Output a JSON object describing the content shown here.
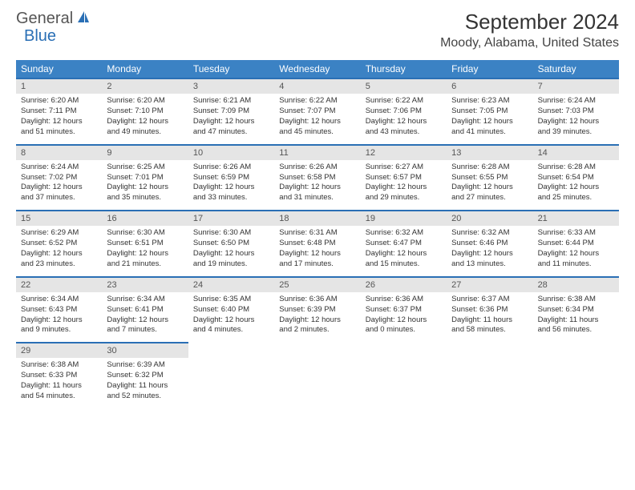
{
  "logo": {
    "text_general": "General",
    "text_blue": "Blue"
  },
  "title": "September 2024",
  "location": "Moody, Alabama, United States",
  "colors": {
    "header_bg": "#3b82c4",
    "header_text": "#ffffff",
    "day_bar_bg": "#e5e5e5",
    "day_bar_border": "#2a6fb5",
    "body_text": "#333333",
    "logo_blue": "#2a6fb5",
    "logo_gray": "#555555"
  },
  "day_names": [
    "Sunday",
    "Monday",
    "Tuesday",
    "Wednesday",
    "Thursday",
    "Friday",
    "Saturday"
  ],
  "weeks": [
    [
      {
        "num": "1",
        "sunrise": "Sunrise: 6:20 AM",
        "sunset": "Sunset: 7:11 PM",
        "daylight1": "Daylight: 12 hours",
        "daylight2": "and 51 minutes."
      },
      {
        "num": "2",
        "sunrise": "Sunrise: 6:20 AM",
        "sunset": "Sunset: 7:10 PM",
        "daylight1": "Daylight: 12 hours",
        "daylight2": "and 49 minutes."
      },
      {
        "num": "3",
        "sunrise": "Sunrise: 6:21 AM",
        "sunset": "Sunset: 7:09 PM",
        "daylight1": "Daylight: 12 hours",
        "daylight2": "and 47 minutes."
      },
      {
        "num": "4",
        "sunrise": "Sunrise: 6:22 AM",
        "sunset": "Sunset: 7:07 PM",
        "daylight1": "Daylight: 12 hours",
        "daylight2": "and 45 minutes."
      },
      {
        "num": "5",
        "sunrise": "Sunrise: 6:22 AM",
        "sunset": "Sunset: 7:06 PM",
        "daylight1": "Daylight: 12 hours",
        "daylight2": "and 43 minutes."
      },
      {
        "num": "6",
        "sunrise": "Sunrise: 6:23 AM",
        "sunset": "Sunset: 7:05 PM",
        "daylight1": "Daylight: 12 hours",
        "daylight2": "and 41 minutes."
      },
      {
        "num": "7",
        "sunrise": "Sunrise: 6:24 AM",
        "sunset": "Sunset: 7:03 PM",
        "daylight1": "Daylight: 12 hours",
        "daylight2": "and 39 minutes."
      }
    ],
    [
      {
        "num": "8",
        "sunrise": "Sunrise: 6:24 AM",
        "sunset": "Sunset: 7:02 PM",
        "daylight1": "Daylight: 12 hours",
        "daylight2": "and 37 minutes."
      },
      {
        "num": "9",
        "sunrise": "Sunrise: 6:25 AM",
        "sunset": "Sunset: 7:01 PM",
        "daylight1": "Daylight: 12 hours",
        "daylight2": "and 35 minutes."
      },
      {
        "num": "10",
        "sunrise": "Sunrise: 6:26 AM",
        "sunset": "Sunset: 6:59 PM",
        "daylight1": "Daylight: 12 hours",
        "daylight2": "and 33 minutes."
      },
      {
        "num": "11",
        "sunrise": "Sunrise: 6:26 AM",
        "sunset": "Sunset: 6:58 PM",
        "daylight1": "Daylight: 12 hours",
        "daylight2": "and 31 minutes."
      },
      {
        "num": "12",
        "sunrise": "Sunrise: 6:27 AM",
        "sunset": "Sunset: 6:57 PM",
        "daylight1": "Daylight: 12 hours",
        "daylight2": "and 29 minutes."
      },
      {
        "num": "13",
        "sunrise": "Sunrise: 6:28 AM",
        "sunset": "Sunset: 6:55 PM",
        "daylight1": "Daylight: 12 hours",
        "daylight2": "and 27 minutes."
      },
      {
        "num": "14",
        "sunrise": "Sunrise: 6:28 AM",
        "sunset": "Sunset: 6:54 PM",
        "daylight1": "Daylight: 12 hours",
        "daylight2": "and 25 minutes."
      }
    ],
    [
      {
        "num": "15",
        "sunrise": "Sunrise: 6:29 AM",
        "sunset": "Sunset: 6:52 PM",
        "daylight1": "Daylight: 12 hours",
        "daylight2": "and 23 minutes."
      },
      {
        "num": "16",
        "sunrise": "Sunrise: 6:30 AM",
        "sunset": "Sunset: 6:51 PM",
        "daylight1": "Daylight: 12 hours",
        "daylight2": "and 21 minutes."
      },
      {
        "num": "17",
        "sunrise": "Sunrise: 6:30 AM",
        "sunset": "Sunset: 6:50 PM",
        "daylight1": "Daylight: 12 hours",
        "daylight2": "and 19 minutes."
      },
      {
        "num": "18",
        "sunrise": "Sunrise: 6:31 AM",
        "sunset": "Sunset: 6:48 PM",
        "daylight1": "Daylight: 12 hours",
        "daylight2": "and 17 minutes."
      },
      {
        "num": "19",
        "sunrise": "Sunrise: 6:32 AM",
        "sunset": "Sunset: 6:47 PM",
        "daylight1": "Daylight: 12 hours",
        "daylight2": "and 15 minutes."
      },
      {
        "num": "20",
        "sunrise": "Sunrise: 6:32 AM",
        "sunset": "Sunset: 6:46 PM",
        "daylight1": "Daylight: 12 hours",
        "daylight2": "and 13 minutes."
      },
      {
        "num": "21",
        "sunrise": "Sunrise: 6:33 AM",
        "sunset": "Sunset: 6:44 PM",
        "daylight1": "Daylight: 12 hours",
        "daylight2": "and 11 minutes."
      }
    ],
    [
      {
        "num": "22",
        "sunrise": "Sunrise: 6:34 AM",
        "sunset": "Sunset: 6:43 PM",
        "daylight1": "Daylight: 12 hours",
        "daylight2": "and 9 minutes."
      },
      {
        "num": "23",
        "sunrise": "Sunrise: 6:34 AM",
        "sunset": "Sunset: 6:41 PM",
        "daylight1": "Daylight: 12 hours",
        "daylight2": "and 7 minutes."
      },
      {
        "num": "24",
        "sunrise": "Sunrise: 6:35 AM",
        "sunset": "Sunset: 6:40 PM",
        "daylight1": "Daylight: 12 hours",
        "daylight2": "and 4 minutes."
      },
      {
        "num": "25",
        "sunrise": "Sunrise: 6:36 AM",
        "sunset": "Sunset: 6:39 PM",
        "daylight1": "Daylight: 12 hours",
        "daylight2": "and 2 minutes."
      },
      {
        "num": "26",
        "sunrise": "Sunrise: 6:36 AM",
        "sunset": "Sunset: 6:37 PM",
        "daylight1": "Daylight: 12 hours",
        "daylight2": "and 0 minutes."
      },
      {
        "num": "27",
        "sunrise": "Sunrise: 6:37 AM",
        "sunset": "Sunset: 6:36 PM",
        "daylight1": "Daylight: 11 hours",
        "daylight2": "and 58 minutes."
      },
      {
        "num": "28",
        "sunrise": "Sunrise: 6:38 AM",
        "sunset": "Sunset: 6:34 PM",
        "daylight1": "Daylight: 11 hours",
        "daylight2": "and 56 minutes."
      }
    ],
    [
      {
        "num": "29",
        "sunrise": "Sunrise: 6:38 AM",
        "sunset": "Sunset: 6:33 PM",
        "daylight1": "Daylight: 11 hours",
        "daylight2": "and 54 minutes."
      },
      {
        "num": "30",
        "sunrise": "Sunrise: 6:39 AM",
        "sunset": "Sunset: 6:32 PM",
        "daylight1": "Daylight: 11 hours",
        "daylight2": "and 52 minutes."
      },
      null,
      null,
      null,
      null,
      null
    ]
  ]
}
